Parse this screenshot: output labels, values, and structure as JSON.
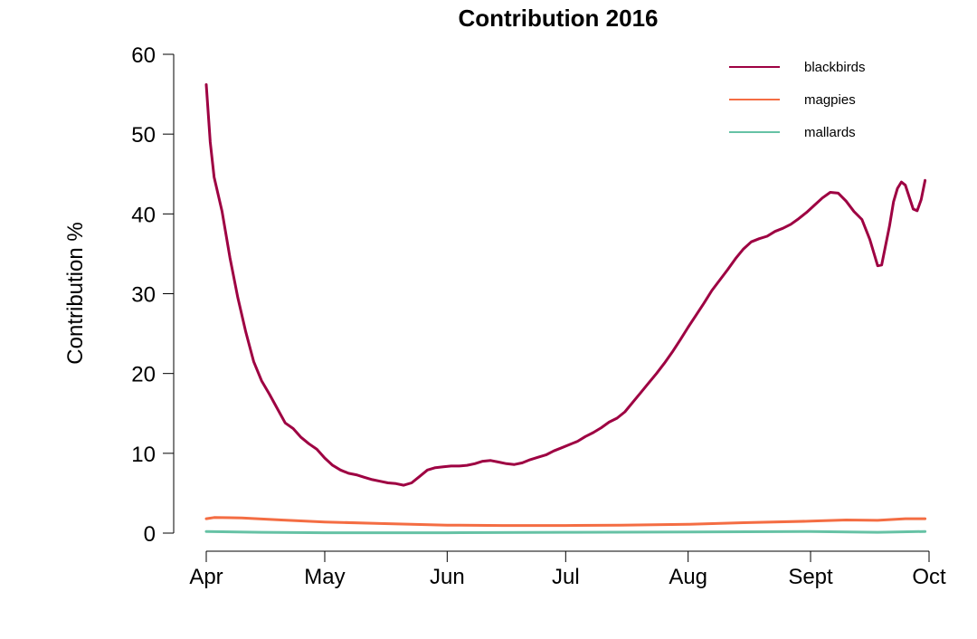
{
  "chart_data": {
    "type": "line",
    "title": "Contribution 2016",
    "xlabel": "",
    "ylabel": "Contribution %",
    "ylim": [
      0,
      60
    ],
    "yticks": [
      0,
      10,
      20,
      30,
      40,
      50,
      60
    ],
    "xlim": [
      "2016-04-01",
      "2016-10-01"
    ],
    "xticks": [
      {
        "date": "2016-04-01",
        "label": "Apr"
      },
      {
        "date": "2016-05-01",
        "label": "May"
      },
      {
        "date": "2016-06-01",
        "label": "Jun"
      },
      {
        "date": "2016-07-01",
        "label": "Jul"
      },
      {
        "date": "2016-08-01",
        "label": "Aug"
      },
      {
        "date": "2016-09-01",
        "label": "Sept"
      },
      {
        "date": "2016-10-01",
        "label": "Oct"
      }
    ],
    "grid": false,
    "legend_position": "top-right",
    "series": [
      {
        "name": "blackbirds",
        "color": "#9e0142",
        "points": [
          [
            "2016-04-01",
            56.2
          ],
          [
            "2016-04-02",
            49.0
          ],
          [
            "2016-04-03",
            44.6
          ],
          [
            "2016-04-05",
            40.3
          ],
          [
            "2016-04-07",
            34.5
          ],
          [
            "2016-04-09",
            29.5
          ],
          [
            "2016-04-11",
            25.2
          ],
          [
            "2016-04-13",
            21.5
          ],
          [
            "2016-04-15",
            19.1
          ],
          [
            "2016-04-17",
            17.4
          ],
          [
            "2016-04-19",
            15.6
          ],
          [
            "2016-04-21",
            13.8
          ],
          [
            "2016-04-23",
            13.1
          ],
          [
            "2016-04-25",
            12.0
          ],
          [
            "2016-04-27",
            11.2
          ],
          [
            "2016-04-29",
            10.5
          ],
          [
            "2016-05-01",
            9.4
          ],
          [
            "2016-05-03",
            8.5
          ],
          [
            "2016-05-05",
            7.9
          ],
          [
            "2016-05-07",
            7.5
          ],
          [
            "2016-05-09",
            7.3
          ],
          [
            "2016-05-11",
            7.0
          ],
          [
            "2016-05-13",
            6.7
          ],
          [
            "2016-05-15",
            6.5
          ],
          [
            "2016-05-17",
            6.3
          ],
          [
            "2016-05-19",
            6.2
          ],
          [
            "2016-05-21",
            6.0
          ],
          [
            "2016-05-23",
            6.3
          ],
          [
            "2016-05-25",
            7.1
          ],
          [
            "2016-05-27",
            7.9
          ],
          [
            "2016-05-29",
            8.2
          ],
          [
            "2016-05-31",
            8.3
          ],
          [
            "2016-06-02",
            8.4
          ],
          [
            "2016-06-04",
            8.4
          ],
          [
            "2016-06-06",
            8.5
          ],
          [
            "2016-06-08",
            8.7
          ],
          [
            "2016-06-10",
            9.0
          ],
          [
            "2016-06-12",
            9.1
          ],
          [
            "2016-06-14",
            8.9
          ],
          [
            "2016-06-16",
            8.7
          ],
          [
            "2016-06-18",
            8.6
          ],
          [
            "2016-06-20",
            8.8
          ],
          [
            "2016-06-22",
            9.2
          ],
          [
            "2016-06-24",
            9.5
          ],
          [
            "2016-06-26",
            9.8
          ],
          [
            "2016-06-28",
            10.3
          ],
          [
            "2016-06-30",
            10.7
          ],
          [
            "2016-07-02",
            11.1
          ],
          [
            "2016-07-04",
            11.5
          ],
          [
            "2016-07-06",
            12.1
          ],
          [
            "2016-07-08",
            12.6
          ],
          [
            "2016-07-10",
            13.2
          ],
          [
            "2016-07-12",
            13.9
          ],
          [
            "2016-07-14",
            14.4
          ],
          [
            "2016-07-16",
            15.2
          ],
          [
            "2016-07-18",
            16.4
          ],
          [
            "2016-07-20",
            17.6
          ],
          [
            "2016-07-22",
            18.8
          ],
          [
            "2016-07-24",
            20.0
          ],
          [
            "2016-07-26",
            21.3
          ],
          [
            "2016-07-28",
            22.7
          ],
          [
            "2016-07-30",
            24.2
          ],
          [
            "2016-08-01",
            25.8
          ],
          [
            "2016-08-03",
            27.3
          ],
          [
            "2016-08-05",
            28.8
          ],
          [
            "2016-08-07",
            30.4
          ],
          [
            "2016-08-09",
            31.7
          ],
          [
            "2016-08-11",
            33.0
          ],
          [
            "2016-08-13",
            34.4
          ],
          [
            "2016-08-15",
            35.6
          ],
          [
            "2016-08-17",
            36.5
          ],
          [
            "2016-08-19",
            36.9
          ],
          [
            "2016-08-21",
            37.2
          ],
          [
            "2016-08-23",
            37.8
          ],
          [
            "2016-08-25",
            38.2
          ],
          [
            "2016-08-27",
            38.7
          ],
          [
            "2016-08-29",
            39.4
          ],
          [
            "2016-08-31",
            40.2
          ],
          [
            "2016-09-02",
            41.1
          ],
          [
            "2016-09-04",
            42.0
          ],
          [
            "2016-09-06",
            42.7
          ],
          [
            "2016-09-08",
            42.6
          ],
          [
            "2016-09-10",
            41.6
          ],
          [
            "2016-09-12",
            40.3
          ],
          [
            "2016-09-14",
            39.3
          ],
          [
            "2016-09-16",
            36.8
          ],
          [
            "2016-09-18",
            33.5
          ],
          [
            "2016-09-19",
            33.6
          ],
          [
            "2016-09-21",
            38.5
          ],
          [
            "2016-09-22",
            41.5
          ],
          [
            "2016-09-23",
            43.2
          ],
          [
            "2016-09-24",
            44.0
          ],
          [
            "2016-09-25",
            43.6
          ],
          [
            "2016-09-27",
            40.6
          ],
          [
            "2016-09-28",
            40.4
          ],
          [
            "2016-09-29",
            41.8
          ],
          [
            "2016-09-30",
            44.2
          ]
        ]
      },
      {
        "name": "magpies",
        "color": "#f46d43",
        "points": [
          [
            "2016-04-01",
            1.8
          ],
          [
            "2016-04-03",
            1.95
          ],
          [
            "2016-04-10",
            1.9
          ],
          [
            "2016-04-20",
            1.65
          ],
          [
            "2016-05-01",
            1.4
          ],
          [
            "2016-05-15",
            1.2
          ],
          [
            "2016-06-01",
            1.0
          ],
          [
            "2016-06-15",
            0.95
          ],
          [
            "2016-07-01",
            0.95
          ],
          [
            "2016-07-15",
            1.0
          ],
          [
            "2016-08-01",
            1.1
          ],
          [
            "2016-08-15",
            1.3
          ],
          [
            "2016-09-01",
            1.5
          ],
          [
            "2016-09-10",
            1.65
          ],
          [
            "2016-09-18",
            1.6
          ],
          [
            "2016-09-25",
            1.8
          ],
          [
            "2016-09-30",
            1.8
          ]
        ]
      },
      {
        "name": "mallards",
        "color": "#66c2a5",
        "points": [
          [
            "2016-04-01",
            0.2
          ],
          [
            "2016-04-15",
            0.1
          ],
          [
            "2016-05-01",
            0.05
          ],
          [
            "2016-06-01",
            0.05
          ],
          [
            "2016-07-01",
            0.1
          ],
          [
            "2016-08-01",
            0.15
          ],
          [
            "2016-09-01",
            0.2
          ],
          [
            "2016-09-18",
            0.1
          ],
          [
            "2016-09-30",
            0.2
          ]
        ]
      }
    ]
  }
}
